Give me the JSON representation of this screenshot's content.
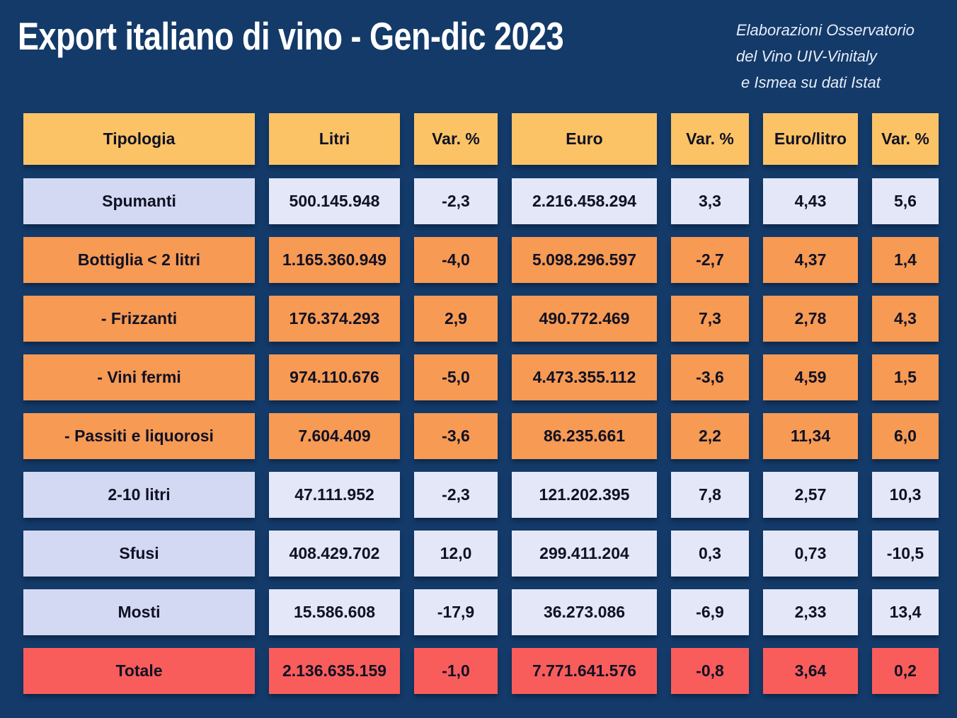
{
  "title": "Export italiano di vino - Gen-dic 2023",
  "attribution": {
    "lines": [
      "Elaborazioni Osservatorio",
      "del Vino UIV-Vinitaly",
      "e Ismea su dati Istat"
    ]
  },
  "colors": {
    "background": "#133A69",
    "header_cell": "#FBC366",
    "row_light_label": "#D3D9F3",
    "row_light_value": "#E3E7F8",
    "row_orange": "#F79A54",
    "row_total": "#F95D5B",
    "cell_text": "#101123",
    "title_text": "#FFFFFF"
  },
  "chart_data": {
    "type": "table",
    "title": "Export italiano di vino - Gen-dic 2023",
    "columns": [
      "Tipologia",
      "Litri",
      "Var. %",
      "Euro",
      "Var. %",
      "Euro/litro",
      "Var. %"
    ],
    "rows": [
      {
        "variant": "light",
        "cells": [
          "Spumanti",
          "500.145.948",
          "-2,3",
          "2.216.458.294",
          "3,3",
          "4,43",
          "5,6"
        ]
      },
      {
        "variant": "orange",
        "cells": [
          "Bottiglia < 2 litri",
          "1.165.360.949",
          "-4,0",
          "5.098.296.597",
          "-2,7",
          "4,37",
          "1,4"
        ]
      },
      {
        "variant": "orange",
        "cells": [
          "- Frizzanti",
          "176.374.293",
          "2,9",
          "490.772.469",
          "7,3",
          "2,78",
          "4,3"
        ]
      },
      {
        "variant": "orange",
        "cells": [
          "- Vini fermi",
          "974.110.676",
          "-5,0",
          "4.473.355.112",
          "-3,6",
          "4,59",
          "1,5"
        ]
      },
      {
        "variant": "orange",
        "cells": [
          "- Passiti e liquorosi",
          "7.604.409",
          "-3,6",
          "86.235.661",
          "2,2",
          "11,34",
          "6,0"
        ]
      },
      {
        "variant": "light",
        "cells": [
          "2-10 litri",
          "47.111.952",
          "-2,3",
          "121.202.395",
          "7,8",
          "2,57",
          "10,3"
        ]
      },
      {
        "variant": "light",
        "cells": [
          "Sfusi",
          "408.429.702",
          "12,0",
          "299.411.204",
          "0,3",
          "0,73",
          "-10,5"
        ]
      },
      {
        "variant": "light",
        "cells": [
          "Mosti",
          "15.586.608",
          "-17,9",
          "36.273.086",
          "-6,9",
          "2,33",
          "13,4"
        ]
      },
      {
        "variant": "total",
        "cells": [
          "Totale",
          "2.136.635.159",
          "-1,0",
          "7.771.641.576",
          "-0,8",
          "3,64",
          "0,2"
        ]
      }
    ]
  }
}
